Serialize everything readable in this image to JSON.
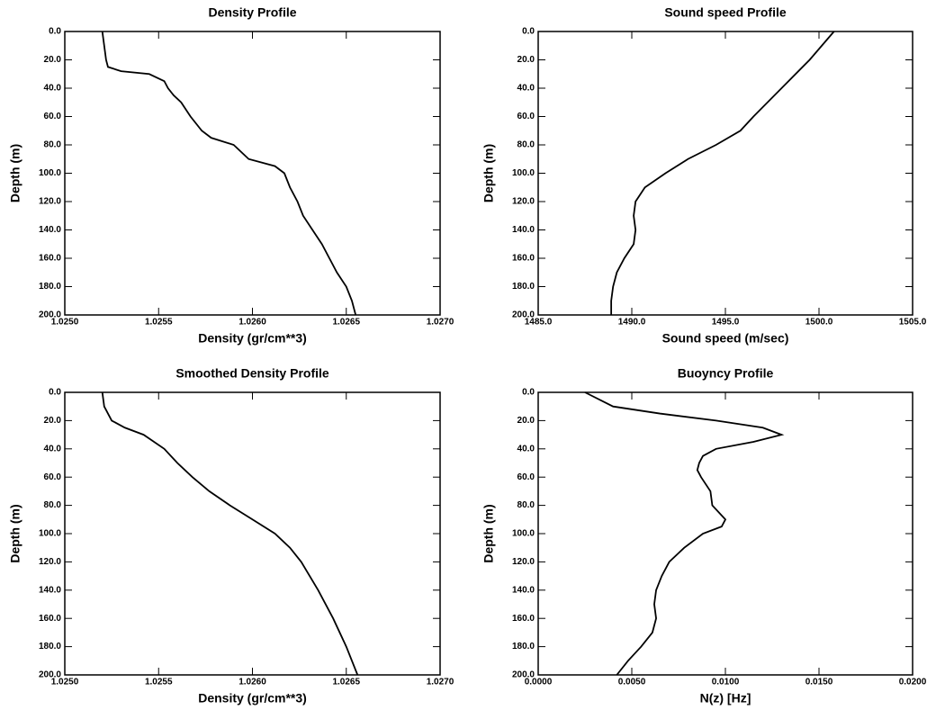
{
  "chart_data": [
    {
      "type": "line",
      "title": "Density Profile",
      "xlabel": "Density (gr/cm**3)",
      "ylabel": "Depth (m)",
      "color": "#000000",
      "yinvert": true,
      "x": [
        1.0252,
        1.02521,
        1.02522,
        1.02523,
        1.0253,
        1.02545,
        1.02553,
        1.02555,
        1.02558,
        1.02562,
        1.02567,
        1.02573,
        1.02578,
        1.0259,
        1.02594,
        1.02598,
        1.02612,
        1.02617,
        1.0262,
        1.02624,
        1.02627,
        1.02632,
        1.02637,
        1.02641,
        1.02645,
        1.0265,
        1.02653,
        1.02655
      ],
      "values": [
        0,
        10,
        20,
        25,
        28,
        30,
        35,
        40,
        45,
        50,
        60,
        70,
        75,
        80,
        85,
        90,
        95,
        100,
        110,
        120,
        130,
        140,
        150,
        160,
        170,
        180,
        190,
        200
      ],
      "xlim": [
        1.025,
        1.027
      ],
      "xticks": [
        {
          "value": 1.025,
          "label": "1.0250"
        },
        {
          "value": 1.0255,
          "label": "1.0255"
        },
        {
          "value": 1.026,
          "label": "1.0260"
        },
        {
          "value": 1.0265,
          "label": "1.0265"
        },
        {
          "value": 1.027,
          "label": "1.0270"
        }
      ],
      "ylim": [
        0,
        200
      ],
      "yticks": [
        {
          "value": 0,
          "label": "0.0"
        },
        {
          "value": 20,
          "label": "20.0"
        },
        {
          "value": 40,
          "label": "40.0"
        },
        {
          "value": 60,
          "label": "60.0"
        },
        {
          "value": 80,
          "label": "80.0"
        },
        {
          "value": 100,
          "label": "100.0"
        },
        {
          "value": 120,
          "label": "120.0"
        },
        {
          "value": 140,
          "label": "140.0"
        },
        {
          "value": 160,
          "label": "160.0"
        },
        {
          "value": 180,
          "label": "180.0"
        },
        {
          "value": 200,
          "label": "200.0"
        }
      ]
    },
    {
      "type": "line",
      "title": "Sound speed Profile",
      "xlabel": "Sound speed (m/sec)",
      "ylabel": "Depth (m)",
      "color": "#000000",
      "yinvert": true,
      "x": [
        1500.8,
        1499.5,
        1498.0,
        1496.5,
        1495.8,
        1494.5,
        1493.0,
        1491.8,
        1490.7,
        1490.2,
        1490.1,
        1490.2,
        1490.1,
        1489.6,
        1489.2,
        1489.0,
        1488.9,
        1488.9
      ],
      "values": [
        0,
        20,
        40,
        60,
        70,
        80,
        90,
        100,
        110,
        120,
        130,
        140,
        150,
        160,
        170,
        180,
        190,
        200
      ],
      "xlim": [
        1485,
        1505
      ],
      "xticks": [
        {
          "value": 1485,
          "label": "1485.0"
        },
        {
          "value": 1490,
          "label": "1490.0"
        },
        {
          "value": 1495,
          "label": "1495.0"
        },
        {
          "value": 1500,
          "label": "1500.0"
        },
        {
          "value": 1505,
          "label": "1505.0"
        }
      ],
      "ylim": [
        0,
        200
      ],
      "yticks": [
        {
          "value": 0,
          "label": "0.0"
        },
        {
          "value": 20,
          "label": "20.0"
        },
        {
          "value": 40,
          "label": "40.0"
        },
        {
          "value": 60,
          "label": "60.0"
        },
        {
          "value": 80,
          "label": "80.0"
        },
        {
          "value": 100,
          "label": "100.0"
        },
        {
          "value": 120,
          "label": "120.0"
        },
        {
          "value": 140,
          "label": "140.0"
        },
        {
          "value": 160,
          "label": "160.0"
        },
        {
          "value": 180,
          "label": "180.0"
        },
        {
          "value": 200,
          "label": "200.0"
        }
      ]
    },
    {
      "type": "line",
      "title": "Smoothed Density Profile",
      "xlabel": "Density (gr/cm**3)",
      "ylabel": "Depth (m)",
      "color": "#000000",
      "yinvert": true,
      "x": [
        1.0252,
        1.02521,
        1.02525,
        1.02532,
        1.02542,
        1.02553,
        1.0256,
        1.02568,
        1.02577,
        1.02588,
        1.026,
        1.02612,
        1.0262,
        1.02626,
        1.02635,
        1.02643,
        1.0265,
        1.02656
      ],
      "values": [
        0,
        10,
        20,
        25,
        30,
        40,
        50,
        60,
        70,
        80,
        90,
        100,
        110,
        120,
        140,
        160,
        180,
        200
      ],
      "xlim": [
        1.025,
        1.027
      ],
      "xticks": [
        {
          "value": 1.025,
          "label": "1.0250"
        },
        {
          "value": 1.0255,
          "label": "1.0255"
        },
        {
          "value": 1.026,
          "label": "1.0260"
        },
        {
          "value": 1.0265,
          "label": "1.0265"
        },
        {
          "value": 1.027,
          "label": "1.0270"
        }
      ],
      "ylim": [
        0,
        200
      ],
      "yticks": [
        {
          "value": 0,
          "label": "0.0"
        },
        {
          "value": 20,
          "label": "20.0"
        },
        {
          "value": 40,
          "label": "40.0"
        },
        {
          "value": 60,
          "label": "60.0"
        },
        {
          "value": 80,
          "label": "80.0"
        },
        {
          "value": 100,
          "label": "100.0"
        },
        {
          "value": 120,
          "label": "120.0"
        },
        {
          "value": 140,
          "label": "140.0"
        },
        {
          "value": 160,
          "label": "160.0"
        },
        {
          "value": 180,
          "label": "180.0"
        },
        {
          "value": 200,
          "label": "200.0"
        }
      ]
    },
    {
      "type": "line",
      "title": "Buoyncy Profile",
      "xlabel": "N(z) [Hz]",
      "ylabel": "Depth (m)",
      "color": "#000000",
      "yinvert": true,
      "x": [
        0.0025,
        0.004,
        0.0065,
        0.0095,
        0.012,
        0.013,
        0.0115,
        0.0095,
        0.0088,
        0.0086,
        0.0085,
        0.0087,
        0.0092,
        0.0093,
        0.01,
        0.0098,
        0.0088,
        0.0078,
        0.007,
        0.0066,
        0.0063,
        0.0062,
        0.0063,
        0.0061,
        0.0055,
        0.0048,
        0.0042
      ],
      "values": [
        0,
        10,
        15,
        20,
        25,
        30,
        35,
        40,
        45,
        50,
        55,
        60,
        70,
        80,
        90,
        95,
        100,
        110,
        120,
        130,
        140,
        150,
        160,
        170,
        180,
        190,
        200
      ],
      "xlim": [
        0,
        0.02
      ],
      "xticks": [
        {
          "value": 0,
          "label": "0.0000"
        },
        {
          "value": 0.005,
          "label": "0.0050"
        },
        {
          "value": 0.01,
          "label": "0.0100"
        },
        {
          "value": 0.015,
          "label": "0.0150"
        },
        {
          "value": 0.02,
          "label": "0.0200"
        }
      ],
      "ylim": [
        0,
        200
      ],
      "yticks": [
        {
          "value": 0,
          "label": "0.0"
        },
        {
          "value": 20,
          "label": "20.0"
        },
        {
          "value": 40,
          "label": "40.0"
        },
        {
          "value": 60,
          "label": "60.0"
        },
        {
          "value": 80,
          "label": "80.0"
        },
        {
          "value": 100,
          "label": "100.0"
        },
        {
          "value": 120,
          "label": "120.0"
        },
        {
          "value": 140,
          "label": "140.0"
        },
        {
          "value": 160,
          "label": "160.0"
        },
        {
          "value": 180,
          "label": "180.0"
        },
        {
          "value": 200,
          "label": "200.0"
        }
      ]
    }
  ]
}
